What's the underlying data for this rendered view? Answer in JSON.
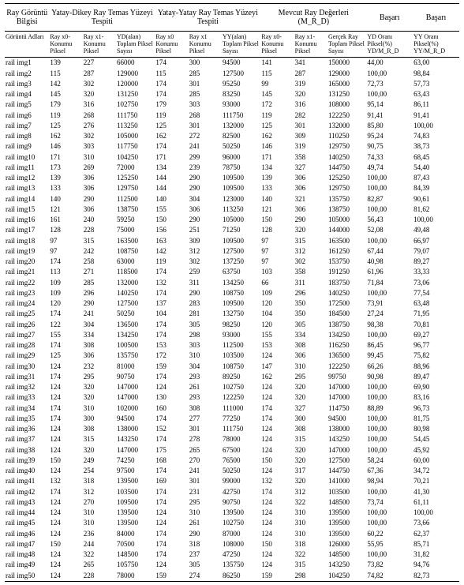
{
  "headers": {
    "group0": "Ray Görüntü Bilgisi",
    "group1": "Yatay-Dikey Ray Temas Yüzeyi Tespiti",
    "group2": "Yatay-Yatay Ray Temas Yüzeyi Tespiti",
    "group3": "Mevcut Ray Değerleri (M_R_D)",
    "group4": "Başarı",
    "group5": "Başarı",
    "sub": {
      "c0": "Görüntü Adları",
      "c1": "Ray x0-Konumu Piksel",
      "c2": "Ray x1-Konumu Piksel",
      "c3": "YD(alan) Toplam Piksel Sayısı",
      "c4": "Ray x0 Konumu Piksel",
      "c5": "Ray x1 Konumu Piksel",
      "c6": "YY(alan) Toplam Piksel Sayısı",
      "c7": "Ray x0-Konumu Piksel",
      "c8": "Ray x1-Konumu Piksel",
      "c9": "Gerçek Ray Toplam Piksel Sayısı",
      "c10": "YD Oranı Piksel(%) YD/M_R_D",
      "c11": "YY Oranı Piksel(%) YY/M_R_D"
    }
  },
  "rows": [
    [
      "rail img1",
      "139",
      "227",
      "66000",
      "174",
      "300",
      "94500",
      "141",
      "341",
      "150000",
      "44,00",
      "63,00"
    ],
    [
      "rail img2",
      "115",
      "287",
      "129000",
      "115",
      "285",
      "127500",
      "115",
      "287",
      "129000",
      "100,00",
      "98,84"
    ],
    [
      "rail img3",
      "142",
      "302",
      "120000",
      "174",
      "301",
      "95250",
      "99",
      "319",
      "165000",
      "72,73",
      "57,73"
    ],
    [
      "rail img4",
      "145",
      "320",
      "131250",
      "174",
      "285",
      "83250",
      "145",
      "320",
      "131250",
      "100,00",
      "63,43"
    ],
    [
      "rail img5",
      "179",
      "316",
      "102750",
      "179",
      "303",
      "93000",
      "172",
      "316",
      "108000",
      "95,14",
      "86,11"
    ],
    [
      "rail img6",
      "119",
      "268",
      "111750",
      "119",
      "268",
      "111750",
      "119",
      "282",
      "122250",
      "91,41",
      "91,41"
    ],
    [
      "rail img7",
      "125",
      "276",
      "113250",
      "125",
      "301",
      "132000",
      "125",
      "301",
      "132000",
      "85,80",
      "100,00"
    ],
    [
      "rail img8",
      "162",
      "302",
      "105000",
      "162",
      "272",
      "82500",
      "162",
      "309",
      "110250",
      "95,24",
      "74,83"
    ],
    [
      "rail img9",
      "146",
      "303",
      "117750",
      "174",
      "241",
      "50250",
      "146",
      "319",
      "129750",
      "90,75",
      "38,73"
    ],
    [
      "rail img10",
      "171",
      "310",
      "104250",
      "171",
      "299",
      "96000",
      "171",
      "358",
      "140250",
      "74,33",
      "68,45"
    ],
    [
      "rail img11",
      "173",
      "269",
      "72000",
      "134",
      "239",
      "78750",
      "134",
      "327",
      "144750",
      "49,74",
      "54,40"
    ],
    [
      "rail img12",
      "139",
      "306",
      "125250",
      "144",
      "290",
      "109500",
      "139",
      "306",
      "125250",
      "100,00",
      "87,43"
    ],
    [
      "rail img13",
      "133",
      "306",
      "129750",
      "144",
      "290",
      "109500",
      "133",
      "306",
      "129750",
      "100,00",
      "84,39"
    ],
    [
      "rail img14",
      "140",
      "290",
      "112500",
      "140",
      "304",
      "123000",
      "140",
      "321",
      "135750",
      "82,87",
      "90,61"
    ],
    [
      "rail img15",
      "121",
      "306",
      "138750",
      "155",
      "306",
      "113250",
      "121",
      "306",
      "138750",
      "100,00",
      "81,62"
    ],
    [
      "rail img16",
      "161",
      "240",
      "59250",
      "150",
      "290",
      "105000",
      "150",
      "290",
      "105000",
      "56,43",
      "100,00"
    ],
    [
      "rail img17",
      "128",
      "228",
      "75000",
      "156",
      "251",
      "71250",
      "128",
      "320",
      "144000",
      "52,08",
      "49,48"
    ],
    [
      "rail img18",
      "97",
      "315",
      "163500",
      "163",
      "309",
      "109500",
      "97",
      "315",
      "163500",
      "100,00",
      "66,97"
    ],
    [
      "rail img19",
      "97",
      "242",
      "108750",
      "142",
      "312",
      "127500",
      "97",
      "312",
      "161250",
      "67,44",
      "79,07"
    ],
    [
      "rail img20",
      "174",
      "258",
      "63000",
      "119",
      "302",
      "137250",
      "97",
      "302",
      "153750",
      "40,98",
      "89,27"
    ],
    [
      "rail img21",
      "113",
      "271",
      "118500",
      "174",
      "259",
      "63750",
      "103",
      "358",
      "191250",
      "61,96",
      "33,33"
    ],
    [
      "rail img22",
      "109",
      "285",
      "132000",
      "132",
      "311",
      "134250",
      "66",
      "311",
      "183750",
      "71,84",
      "73,06"
    ],
    [
      "rail img23",
      "109",
      "296",
      "140250",
      "174",
      "290",
      "108750",
      "109",
      "296",
      "140250",
      "100,00",
      "77,54"
    ],
    [
      "rail img24",
      "120",
      "290",
      "127500",
      "137",
      "283",
      "109500",
      "120",
      "350",
      "172500",
      "73,91",
      "63,48"
    ],
    [
      "rail img25",
      "174",
      "241",
      "50250",
      "104",
      "281",
      "132750",
      "104",
      "350",
      "184500",
      "27,24",
      "71,95"
    ],
    [
      "rail img26",
      "122",
      "304",
      "136500",
      "174",
      "305",
      "98250",
      "120",
      "305",
      "138750",
      "98,38",
      "70,81"
    ],
    [
      "rail img27",
      "155",
      "334",
      "134250",
      "174",
      "298",
      "93000",
      "155",
      "334",
      "134250",
      "100,00",
      "69,27"
    ],
    [
      "rail img28",
      "174",
      "308",
      "100500",
      "153",
      "303",
      "112500",
      "153",
      "308",
      "116250",
      "86,45",
      "96,77"
    ],
    [
      "rail img29",
      "125",
      "306",
      "135750",
      "172",
      "310",
      "103500",
      "124",
      "306",
      "136500",
      "99,45",
      "75,82"
    ],
    [
      "rail img30",
      "124",
      "232",
      "81000",
      "159",
      "304",
      "108750",
      "147",
      "310",
      "122250",
      "66,26",
      "88,96"
    ],
    [
      "rail img31",
      "174",
      "295",
      "90750",
      "174",
      "293",
      "89250",
      "162",
      "295",
      "99750",
      "90,98",
      "89,47"
    ],
    [
      "rail img32",
      "124",
      "320",
      "147000",
      "124",
      "261",
      "102750",
      "124",
      "320",
      "147000",
      "100,00",
      "69,90"
    ],
    [
      "rail img33",
      "124",
      "320",
      "147000",
      "130",
      "293",
      "122250",
      "124",
      "320",
      "147000",
      "100,00",
      "83,16"
    ],
    [
      "rail img34",
      "174",
      "310",
      "102000",
      "160",
      "308",
      "111000",
      "174",
      "327",
      "114750",
      "88,89",
      "96,73"
    ],
    [
      "rail img35",
      "174",
      "300",
      "94500",
      "174",
      "277",
      "77250",
      "174",
      "300",
      "94500",
      "100,00",
      "81,75"
    ],
    [
      "rail img36",
      "124",
      "308",
      "138000",
      "152",
      "301",
      "111750",
      "124",
      "308",
      "138000",
      "100,00",
      "80,98"
    ],
    [
      "rail img37",
      "124",
      "315",
      "143250",
      "174",
      "278",
      "78000",
      "124",
      "315",
      "143250",
      "100,00",
      "54,45"
    ],
    [
      "rail img38",
      "124",
      "320",
      "147000",
      "175",
      "265",
      "67500",
      "124",
      "320",
      "147000",
      "100,00",
      "45,92"
    ],
    [
      "rail img39",
      "150",
      "249",
      "74250",
      "168",
      "270",
      "76500",
      "150",
      "320",
      "127500",
      "58,24",
      "60,00"
    ],
    [
      "rail img40",
      "124",
      "254",
      "97500",
      "174",
      "241",
      "50250",
      "124",
      "317",
      "144750",
      "67,36",
      "34,72"
    ],
    [
      "rail img41",
      "132",
      "318",
      "139500",
      "169",
      "301",
      "99000",
      "132",
      "320",
      "141000",
      "98,94",
      "70,21"
    ],
    [
      "rail img42",
      "174",
      "312",
      "103500",
      "174",
      "231",
      "42750",
      "174",
      "312",
      "103500",
      "100,00",
      "41,30"
    ],
    [
      "rail img43",
      "124",
      "270",
      "109500",
      "174",
      "295",
      "90750",
      "124",
      "322",
      "148500",
      "73,74",
      "61,11"
    ],
    [
      "rail img44",
      "124",
      "310",
      "139500",
      "124",
      "310",
      "139500",
      "124",
      "310",
      "139500",
      "100,00",
      "100,00"
    ],
    [
      "rail img45",
      "124",
      "310",
      "139500",
      "124",
      "261",
      "102750",
      "124",
      "310",
      "139500",
      "100,00",
      "73,66"
    ],
    [
      "rail img46",
      "124",
      "236",
      "84000",
      "174",
      "290",
      "87000",
      "124",
      "310",
      "139500",
      "60,22",
      "62,37"
    ],
    [
      "rail img47",
      "150",
      "244",
      "70500",
      "174",
      "318",
      "108000",
      "150",
      "318",
      "126000",
      "55,95",
      "85,71"
    ],
    [
      "rail img48",
      "124",
      "322",
      "148500",
      "174",
      "237",
      "47250",
      "124",
      "322",
      "148500",
      "100,00",
      "31,82"
    ],
    [
      "rail img49",
      "124",
      "265",
      "105750",
      "124",
      "305",
      "135750",
      "124",
      "315",
      "143250",
      "73,82",
      "94,76"
    ],
    [
      "rail img50",
      "124",
      "228",
      "78000",
      "159",
      "274",
      "86250",
      "159",
      "298",
      "104250",
      "74,82",
      "82,73"
    ]
  ]
}
